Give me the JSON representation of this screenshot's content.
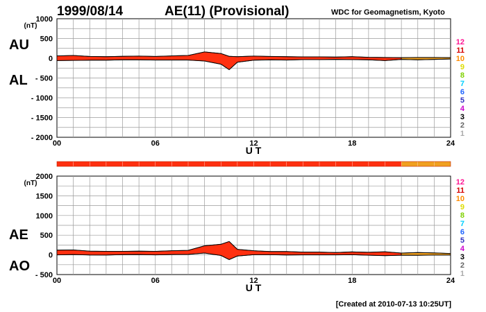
{
  "header": {
    "date": "1999/08/14",
    "title": "AE(11) (Provisional)",
    "source": "WDC for Geomagnetism, Kyoto"
  },
  "footer": {
    "created": "[Created at 2010-07-13 10:25UT]"
  },
  "colors": {
    "final_fill": "#ff3010",
    "provisional_fill": "#f0a020",
    "stations": [
      "#ff1493",
      "#d40000",
      "#ff8c00",
      "#dddd00",
      "#7fd000",
      "#00d0ff",
      "#1e64ff",
      "#3030c0",
      "#cc00cc",
      "#000000",
      "#666666",
      "#aaaaaa"
    ]
  },
  "station_counts": [
    "12",
    "11",
    "10",
    "9",
    "8",
    "7",
    "6",
    "5",
    "4",
    "3",
    "2",
    "1"
  ],
  "coverage_bar": {
    "final_until_hour": 21,
    "provisional_from_hour": 21
  },
  "chart_data": [
    {
      "type": "area",
      "panel": "AU/AL",
      "upper_label": "AU",
      "lower_label": "AL",
      "unit": "(nT)",
      "xlabel": "U T",
      "xlim": [
        0,
        24
      ],
      "xticks": [
        "00",
        "06",
        "12",
        "18",
        "24"
      ],
      "ylim": [
        -2000,
        1000
      ],
      "yticks": [
        "1000",
        "500",
        "0",
        "- 500",
        "- 1000",
        "- 1500",
        "- 2000"
      ],
      "grid": true,
      "hours": [
        0,
        1,
        2,
        3,
        4,
        5,
        6,
        7,
        8,
        9,
        10,
        10.5,
        11,
        12,
        13,
        14,
        15,
        16,
        17,
        18,
        19,
        20,
        21,
        22,
        23,
        24
      ],
      "series": [
        {
          "name": "AU",
          "values": [
            60,
            70,
            45,
            40,
            50,
            55,
            45,
            60,
            70,
            160,
            120,
            50,
            40,
            55,
            45,
            40,
            35,
            35,
            30,
            40,
            25,
            20,
            15,
            20,
            20,
            15
          ]
        },
        {
          "name": "AL",
          "values": [
            -60,
            -55,
            -50,
            -50,
            -40,
            -40,
            -45,
            -45,
            -45,
            -70,
            -150,
            -290,
            -100,
            -50,
            -40,
            -45,
            -35,
            -35,
            -30,
            -35,
            -40,
            -60,
            -30,
            -40,
            -30,
            -20
          ]
        }
      ]
    },
    {
      "type": "area",
      "panel": "AE/AO",
      "upper_label": "AE",
      "lower_label": "AO",
      "unit": "(nT)",
      "xlabel": "U T",
      "xlim": [
        0,
        24
      ],
      "xticks": [
        "00",
        "06",
        "12",
        "18",
        "24"
      ],
      "ylim": [
        -500,
        2000
      ],
      "yticks": [
        "2000",
        "1500",
        "1000",
        "500",
        "0",
        "- 500"
      ],
      "grid": true,
      "hours": [
        0,
        1,
        2,
        3,
        4,
        5,
        6,
        7,
        8,
        9,
        10,
        10.5,
        11,
        12,
        13,
        14,
        15,
        16,
        17,
        18,
        19,
        20,
        21,
        22,
        23,
        24
      ],
      "series": [
        {
          "name": "AE",
          "values": [
            120,
            125,
            95,
            90,
            90,
            95,
            90,
            105,
            115,
            230,
            270,
            340,
            140,
            105,
            85,
            85,
            70,
            70,
            60,
            75,
            65,
            80,
            45,
            60,
            50,
            35
          ]
        },
        {
          "name": "AO",
          "values": [
            0,
            8,
            -3,
            -5,
            5,
            8,
            0,
            8,
            12,
            45,
            -15,
            -120,
            -30,
            3,
            3,
            -3,
            0,
            0,
            0,
            3,
            -8,
            -20,
            -8,
            -10,
            -5,
            -3
          ]
        }
      ]
    }
  ]
}
